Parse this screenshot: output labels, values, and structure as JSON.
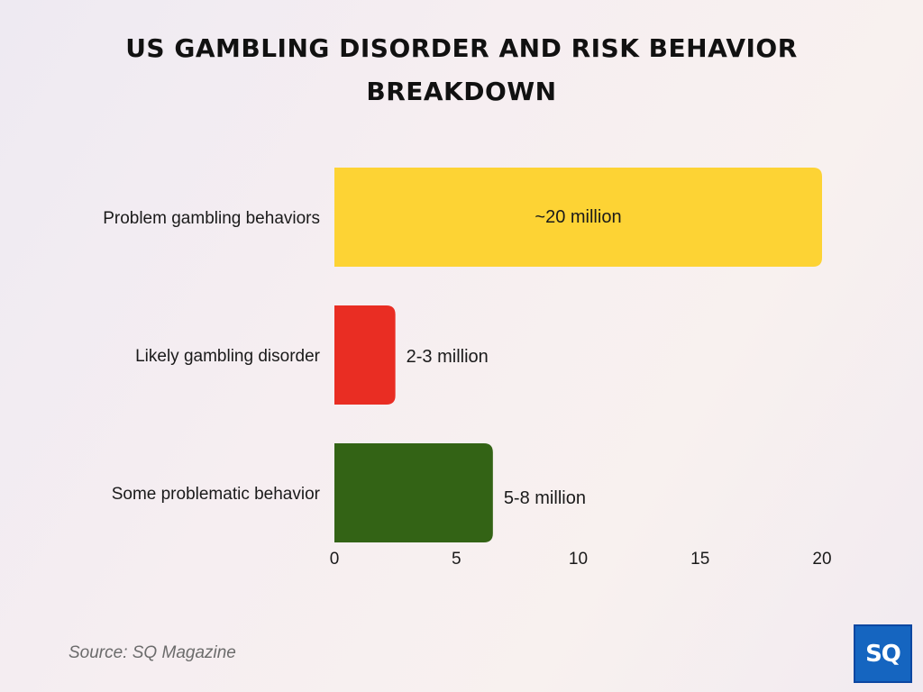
{
  "title": "US GAMBLING DISORDER AND RISK BEHAVIOR BREAKDOWN",
  "source": "Source: SQ Magazine",
  "logo_text": "SQ",
  "chart_data": {
    "type": "bar",
    "orientation": "horizontal",
    "title": "US GAMBLING DISORDER AND RISK BEHAVIOR BREAKDOWN",
    "categories": [
      "Problem gambling behaviors",
      "Likely gambling disorder",
      "Some problematic behavior"
    ],
    "values": [
      20,
      2.5,
      6.5
    ],
    "data_labels": [
      "~20 million",
      "2-3 million",
      "5-8 million"
    ],
    "colors": [
      "#fdd334",
      "#e92d23",
      "#336315"
    ],
    "xlim": [
      0,
      20
    ],
    "xticks": [
      0,
      5,
      10,
      15,
      20
    ],
    "xlabel": "",
    "ylabel": "",
    "grid": false,
    "legend": "none"
  }
}
